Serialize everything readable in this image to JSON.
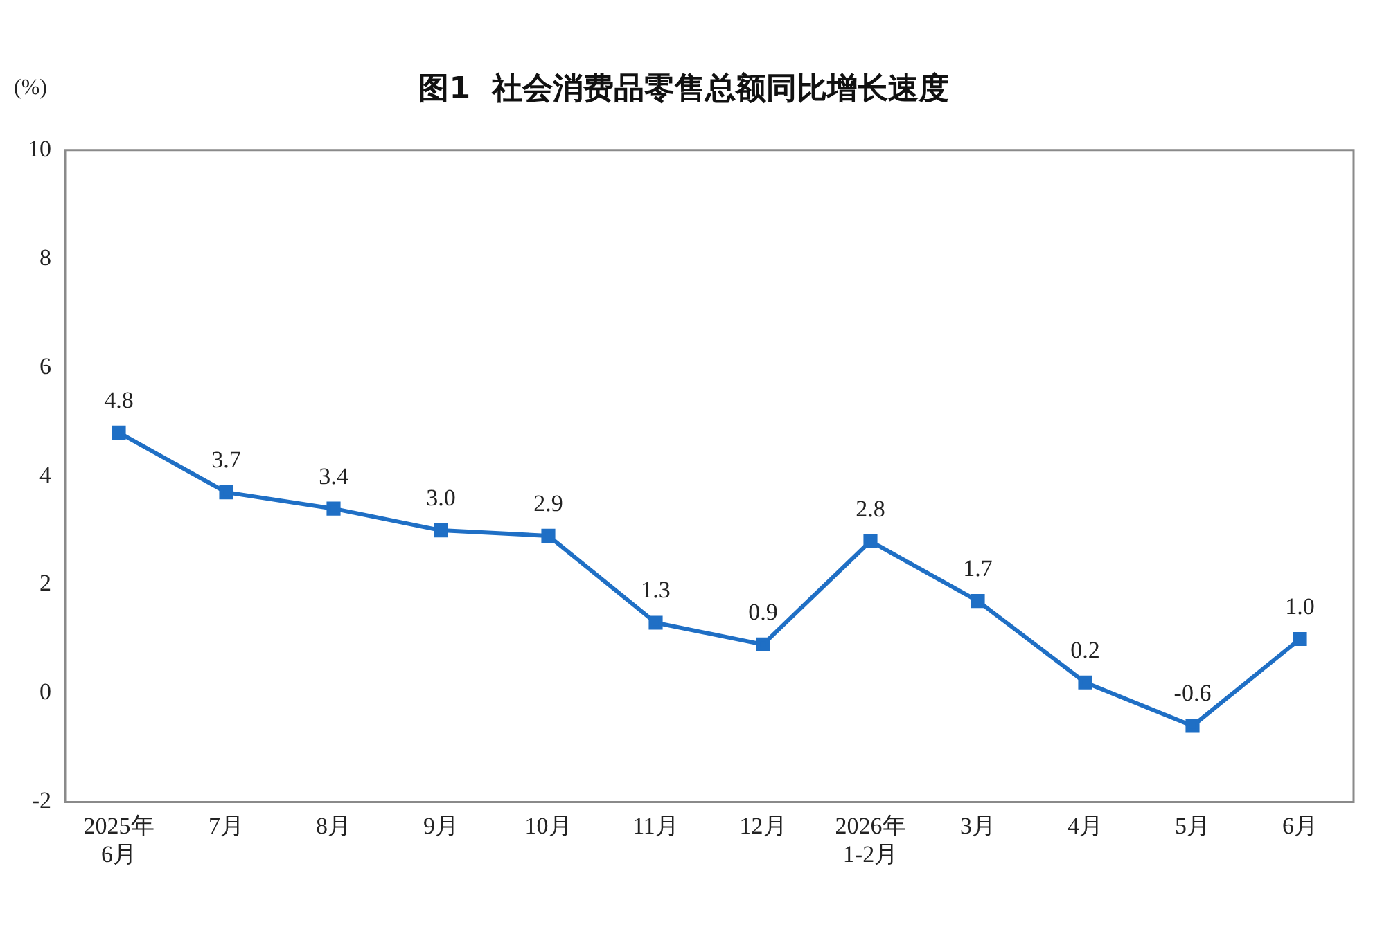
{
  "chart_data": {
    "type": "line",
    "title": "图1  社会消费品零售总额同比增长速度",
    "ylabel": "(%)",
    "categories": [
      "2025年\n6月",
      "7月",
      "8月",
      "9月",
      "10月",
      "11月",
      "12月",
      "2026年\n1-2月",
      "3月",
      "4月",
      "5月",
      "6月"
    ],
    "series": [
      {
        "color": "#1f6fc5",
        "values": [
          4.8,
          3.7,
          3.4,
          3.0,
          2.9,
          1.3,
          0.9,
          2.8,
          1.7,
          0.2,
          -0.6,
          1.0
        ],
        "value_labels": [
          "4.8",
          "3.7",
          "3.4",
          "3.0",
          "2.9",
          "1.3",
          "0.9",
          "2.8",
          "1.7",
          "0.2",
          "-0.6",
          "1.0"
        ]
      }
    ],
    "ylim": [
      -2,
      10
    ],
    "yticks": [
      -2,
      0,
      2,
      4,
      6,
      8,
      10
    ],
    "grid": false,
    "legend": false,
    "marker": "square",
    "line_style": "solid"
  }
}
